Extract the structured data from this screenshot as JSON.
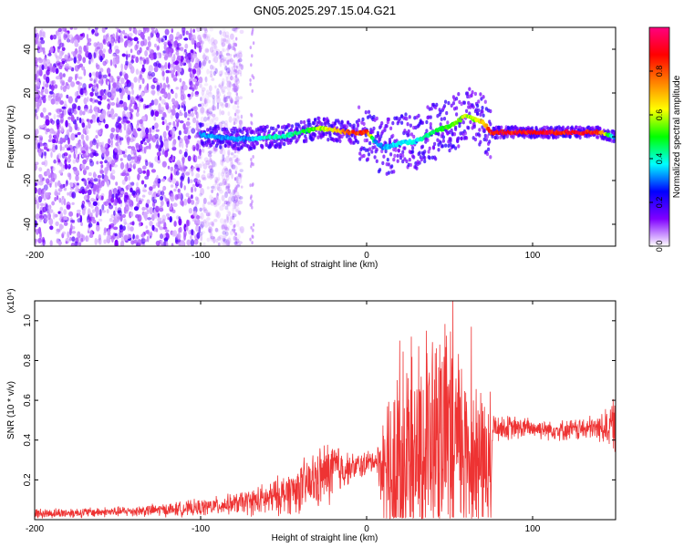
{
  "title": "GN05.2025.297.15.04.G21",
  "colors": {
    "snr_line": "#ee3333",
    "spectrogram_weak": "#cfc6ff",
    "spectrogram_mid": "#7722ee",
    "background": "#ffffff",
    "axis": "#000000"
  },
  "chart_data": [
    {
      "type": "heatmap",
      "name": "spectrogram",
      "xlabel": "Height of straight line (km)",
      "ylabel": "Frequency (Hz)",
      "xlim": [
        -200,
        150
      ],
      "ylim": [
        -50,
        50
      ],
      "xticks": [
        -200,
        -100,
        0,
        100
      ],
      "yticks": [
        -40,
        -20,
        0,
        20,
        40
      ],
      "colorbar": {
        "label": "Normalized spectral amplitude",
        "range": [
          0,
          1
        ],
        "ticks": [
          "0.0",
          "0.2",
          "0.4",
          "0.6",
          "0.8"
        ],
        "colors": [
          "#ffffff",
          "#8000ff",
          "#0000ff",
          "#00ffff",
          "#00ff00",
          "#ffff00",
          "#ff8000",
          "#ff0000",
          "#ff0080"
        ]
      },
      "signal_track": {
        "x": [
          -100,
          -90,
          -80,
          -70,
          -60,
          -50,
          -40,
          -30,
          -20,
          -10,
          0,
          5,
          10,
          20,
          30,
          40,
          50,
          55,
          60,
          65,
          70,
          75,
          80,
          90,
          100,
          110,
          120,
          130,
          140,
          150
        ],
        "freq": [
          1,
          0,
          -1,
          -1,
          0,
          0,
          2,
          4,
          3,
          2,
          2,
          -2,
          -5,
          -3,
          -2,
          2,
          5,
          7,
          10,
          8,
          7,
          2,
          2,
          2,
          2,
          2,
          2,
          2,
          2,
          0
        ],
        "amplitude": [
          0.35,
          0.35,
          0.35,
          0.35,
          0.45,
          0.45,
          0.5,
          0.6,
          0.7,
          0.85,
          0.95,
          0.35,
          0.35,
          0.4,
          0.4,
          0.5,
          0.55,
          0.6,
          0.65,
          0.6,
          0.75,
          0.9,
          0.95,
          0.95,
          0.95,
          0.95,
          0.95,
          0.95,
          0.9,
          0.3
        ]
      },
      "noise_region": {
        "xmin": -200,
        "xmax": -100,
        "amplitude": 0.15
      }
    },
    {
      "type": "line",
      "name": "snr",
      "xlabel": "Height of straight line (km)",
      "ylabel": "SNR (10 * v/v)",
      "scale_label": "(x10⁴)",
      "xlim": [
        -200,
        150
      ],
      "ylim": [
        0,
        1.1
      ],
      "xticks": [
        -200,
        -100,
        0,
        100
      ],
      "yticks": [
        "0.2",
        "0.4",
        "0.6",
        "0.8",
        "1.0"
      ],
      "yticks_values": [
        0.2,
        0.4,
        0.6,
        0.8,
        1.0
      ],
      "envelope": {
        "x": [
          -200,
          -150,
          -120,
          -100,
          -80,
          -60,
          -50,
          -40,
          -30,
          -20,
          -10,
          0,
          5,
          8,
          10,
          15,
          20,
          30,
          40,
          50,
          60,
          70,
          75,
          76,
          80,
          100,
          120,
          140,
          150
        ],
        "base": [
          0.03,
          0.04,
          0.05,
          0.06,
          0.08,
          0.1,
          0.13,
          0.16,
          0.2,
          0.25,
          0.26,
          0.28,
          0.3,
          0.28,
          0.25,
          0.2,
          0.3,
          0.35,
          0.4,
          0.4,
          0.35,
          0.3,
          0.25,
          0.47,
          0.46,
          0.46,
          0.45,
          0.46,
          0.48
        ],
        "spread": [
          0.03,
          0.03,
          0.04,
          0.05,
          0.06,
          0.1,
          0.12,
          0.15,
          0.18,
          0.2,
          0.08,
          0.08,
          0.06,
          0.15,
          0.35,
          0.5,
          0.6,
          0.6,
          0.62,
          0.65,
          0.55,
          0.5,
          0.4,
          0.08,
          0.08,
          0.06,
          0.06,
          0.08,
          0.16
        ]
      },
      "peaks": [
        {
          "x": 52,
          "y": 1.1
        },
        {
          "x": 63,
          "y": 0.97
        },
        {
          "x": 36,
          "y": 0.95
        },
        {
          "x": 20,
          "y": 0.9
        },
        {
          "x": 27,
          "y": 0.92
        },
        {
          "x": 44,
          "y": 0.88
        }
      ]
    }
  ]
}
